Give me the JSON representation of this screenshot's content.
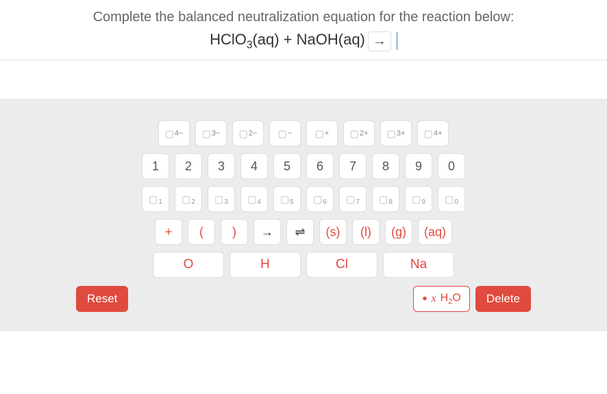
{
  "question": {
    "prompt": "Complete the balanced neutralization equation for the reaction below:",
    "lhs_html": "HClO<sub>3</sub>(aq) + NaOH(aq)",
    "arrow": "→"
  },
  "charges": [
    {
      "sup": "4−"
    },
    {
      "sup": "3−"
    },
    {
      "sup": "2−"
    },
    {
      "sup": "−"
    },
    {
      "sup": "+"
    },
    {
      "sup": "2+"
    },
    {
      "sup": "3+"
    },
    {
      "sup": "4+"
    }
  ],
  "digits": [
    "1",
    "2",
    "3",
    "4",
    "5",
    "6",
    "7",
    "8",
    "9",
    "0"
  ],
  "subscripts": [
    "1",
    "2",
    "3",
    "4",
    "5",
    "6",
    "7",
    "8",
    "9",
    "0"
  ],
  "ops": {
    "plus": "+",
    "lparen": "(",
    "rparen": ")",
    "arrow": "→",
    "equil": "⇌"
  },
  "states": [
    "(s)",
    "(l)",
    "(g)",
    "(aq)"
  ],
  "elements": [
    "O",
    "H",
    "Cl",
    "Na"
  ],
  "actions": {
    "reset": "Reset",
    "xh2o_prefix": "•",
    "xh2o_x": "x",
    "xh2o_label_html": "H<sub>2</sub>O",
    "delete": "Delete"
  }
}
